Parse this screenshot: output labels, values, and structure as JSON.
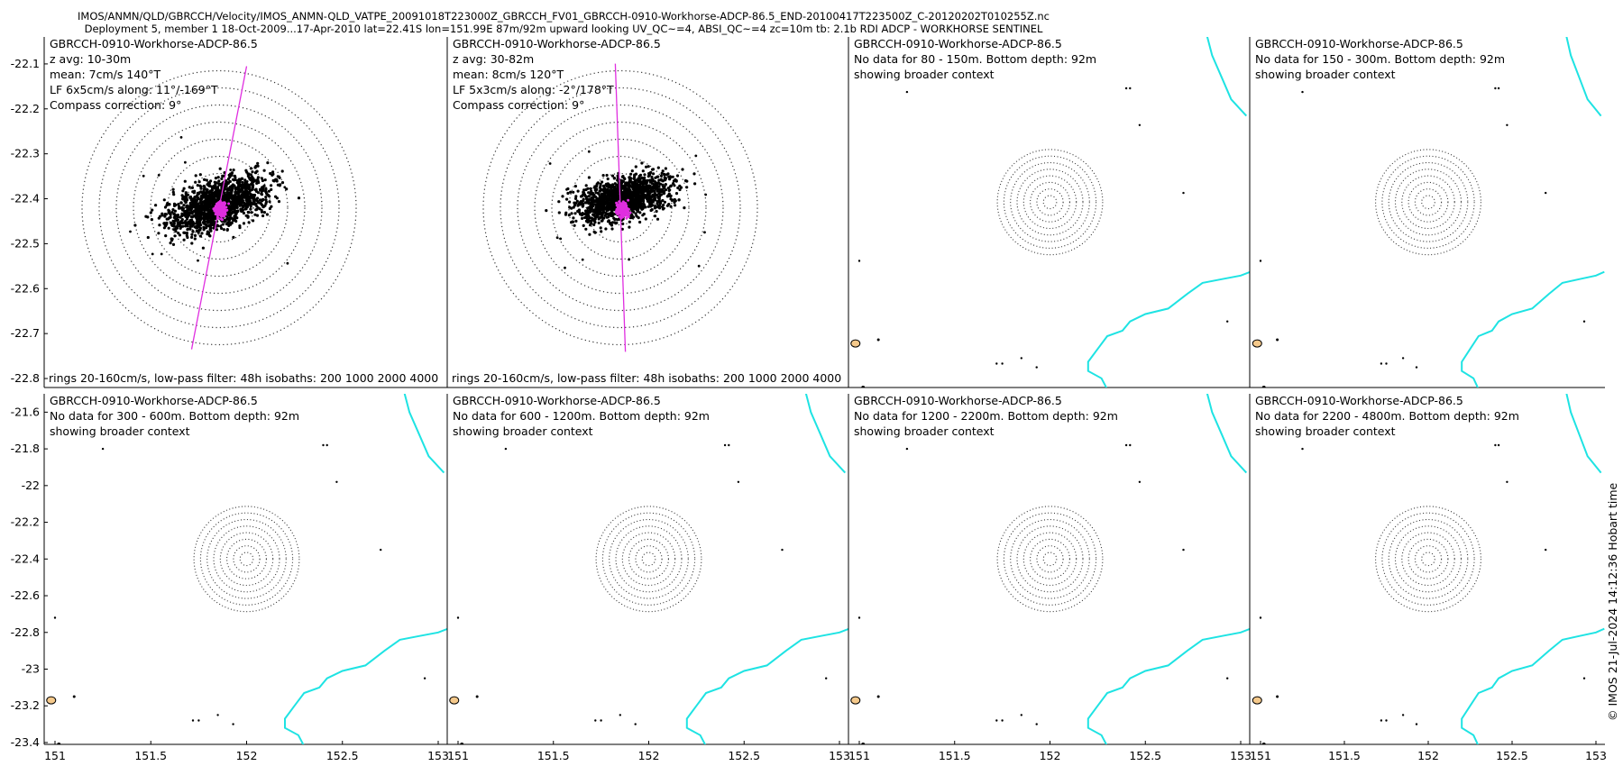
{
  "header": {
    "line1": "IMOS/ANMN/QLD/GBRCCH/Velocity/IMOS_ANMN-QLD_VATPE_20091018T223000Z_GBRCCH_FV01_GBRCCH-0910-Workhorse-ADCP-86.5_END-20100417T223500Z_C-20120202T010255Z.nc",
    "line2": "Deployment 5, member 1 18-Oct-2009...17-Apr-2010 lat=22.41S lon=151.99E 87m/92m upward looking UV_QC~=4, ABSI_QC~=4 zc=10m tb: 2.1b RDI ADCP - WORKHORSE SENTINEL"
  },
  "timestamp": "© IMOS 21-Jul-2024 14:12:36 Hobart time",
  "colors": {
    "coast": "#1ee3e3",
    "axis": "#e02ee0",
    "points": "#000000",
    "reef": "#f5c98b"
  },
  "chart_data": {
    "type": "scatter",
    "top_row": {
      "ylim": [
        -22.82,
        -22.04
      ],
      "xlim": [
        151.92,
        152.1
      ],
      "yticks": [
        -22.1,
        -22.2,
        -22.3,
        -22.4,
        -22.5,
        -22.6,
        -22.7,
        -22.8
      ],
      "ytick_labels": [
        "-22.1",
        "-22.2",
        "-22.3",
        "-22.4",
        "-22.5",
        "-22.6",
        "-22.7",
        "-22.8"
      ]
    },
    "bottom_row": {
      "ylim": [
        -23.41,
        -21.5
      ],
      "xlim": [
        150.95,
        153.05
      ],
      "yticks": [
        -21.6,
        -21.8,
        -22,
        -22.2,
        -22.4,
        -22.6,
        -22.8,
        -23,
        -23.2,
        -23.4
      ],
      "ytick_labels": [
        "-21.6",
        "-21.8",
        "-22",
        "-22.2",
        "-22.4",
        "-22.6",
        "-22.8",
        "-23",
        "-23.2",
        "-23.4"
      ],
      "xticks": [
        151,
        151.5,
        152,
        152.5,
        153
      ],
      "xtick_labels": [
        "151",
        "151.5",
        "152",
        "152.5",
        "153"
      ]
    },
    "panels": [
      {
        "title": "GBRCCH-0910-Workhorse-ADCP-86.5",
        "lines": [
          "z avg: 10-30m",
          "mean: 7cm/s 140°T",
          "LF 6x5cm/s along: 11°/-169°T",
          "Compass correction: 9°"
        ],
        "footer": "rings 20-160cm/s, low-pass filter: 48h isobaths: 200 1000 2000 4000",
        "has_data": true,
        "mean_speed_cms": 7,
        "mean_dir_degT": 140,
        "major_axis_degT": 11,
        "spread_major_cms": 6,
        "spread_minor_cms": 5,
        "rings_cms": [
          20,
          40,
          60,
          80,
          100,
          120,
          140,
          160
        ]
      },
      {
        "title": "GBRCCH-0910-Workhorse-ADCP-86.5",
        "lines": [
          "z avg: 30-82m",
          "mean: 8cm/s 120°T",
          "LF 5x3cm/s along: -2°/178°T",
          "Compass correction: 9°"
        ],
        "footer": "rings 20-160cm/s, low-pass filter: 48h isobaths: 200 1000 2000 4000",
        "has_data": true,
        "mean_speed_cms": 8,
        "mean_dir_degT": 120,
        "major_axis_degT": -2,
        "spread_major_cms": 5,
        "spread_minor_cms": 3,
        "rings_cms": [
          20,
          40,
          60,
          80,
          100,
          120,
          140,
          160
        ]
      },
      {
        "title": "GBRCCH-0910-Workhorse-ADCP-86.5",
        "lines": [
          "No data for 80 - 150m. Bottom depth: 92m",
          "showing broader context"
        ],
        "has_data": false
      },
      {
        "title": "GBRCCH-0910-Workhorse-ADCP-86.5",
        "lines": [
          "No data for 150 - 300m. Bottom depth: 92m",
          "showing broader context"
        ],
        "has_data": false
      },
      {
        "title": "GBRCCH-0910-Workhorse-ADCP-86.5",
        "lines": [
          "No data for 300 - 600m. Bottom depth: 92m",
          "showing broader context"
        ],
        "has_data": false
      },
      {
        "title": "GBRCCH-0910-Workhorse-ADCP-86.5",
        "lines": [
          "No data for 600 - 1200m. Bottom depth: 92m",
          "showing broader context"
        ],
        "has_data": false
      },
      {
        "title": "GBRCCH-0910-Workhorse-ADCP-86.5",
        "lines": [
          "No data for 1200 - 2200m. Bottom depth: 92m",
          "showing broader context"
        ],
        "has_data": false
      },
      {
        "title": "GBRCCH-0910-Workhorse-ADCP-86.5",
        "lines": [
          "No data for 2200 - 4800m. Bottom depth: 92m",
          "showing broader context"
        ],
        "has_data": false
      }
    ]
  }
}
